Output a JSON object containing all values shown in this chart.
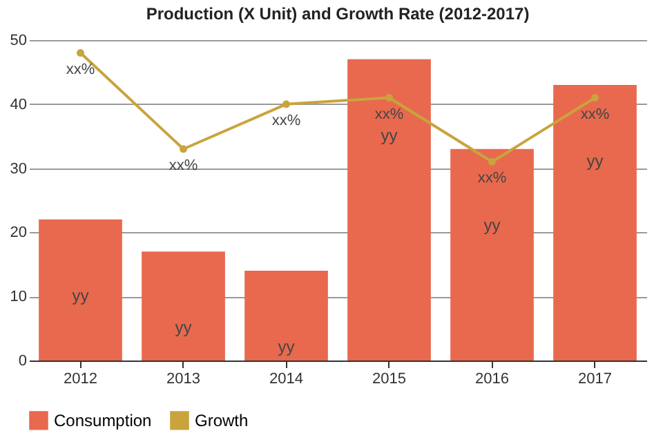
{
  "chart_data": {
    "type": "bar",
    "title": "Production (X Unit) and Growth Rate (2012-2017)",
    "categories": [
      "2012",
      "2013",
      "2014",
      "2015",
      "2016",
      "2017"
    ],
    "series": [
      {
        "name": "Consumption",
        "color": "#e8694e",
        "values": [
          22,
          17,
          14,
          47,
          33,
          43
        ],
        "value_labels": [
          "yy",
          "yy",
          "yy",
          "yy",
          "yy",
          "yy"
        ]
      },
      {
        "name": "Growth",
        "type": "line",
        "color": "#c9a43d",
        "values": [
          48,
          33,
          40,
          41,
          31,
          41
        ],
        "value_labels": [
          "xx%",
          "xx%",
          "xx%",
          "xx%",
          "xx%",
          "xx%"
        ]
      }
    ],
    "ylim": [
      0,
      50
    ],
    "yticks": [
      0,
      10,
      20,
      30,
      40,
      50
    ],
    "grid": "y",
    "legend": "bottom",
    "marker": "circle"
  }
}
